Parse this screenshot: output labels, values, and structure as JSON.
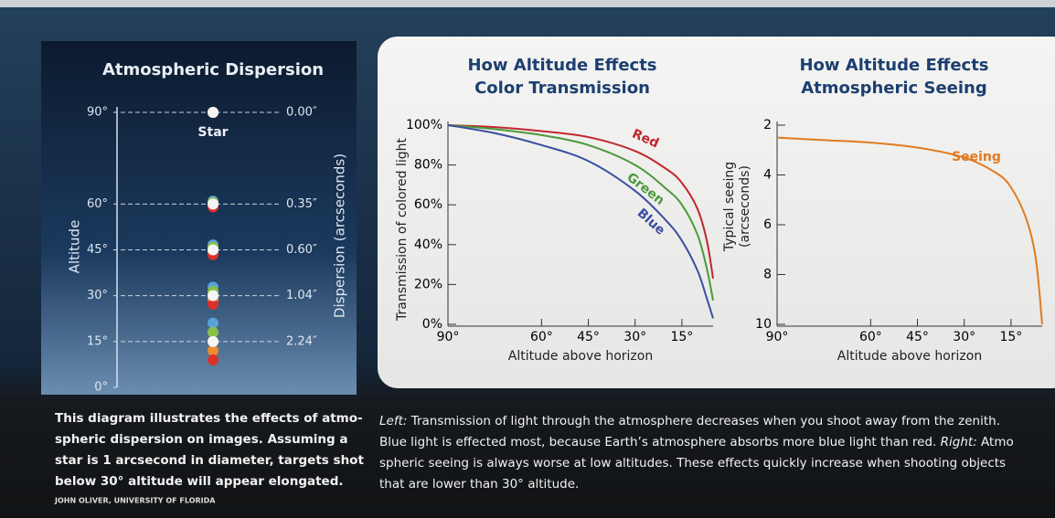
{
  "chart_data": [
    {
      "type": "dispersion",
      "title": "Atmospheric Dispersion",
      "ylabel": "Altitude",
      "y2label": "Dispersion (arcseconds)",
      "annotation": "Star",
      "ylim": [
        0,
        90
      ],
      "yticks": [
        {
          "value": 90,
          "label": "90°"
        },
        {
          "value": 60,
          "label": "60°"
        },
        {
          "value": 45,
          "label": "45°"
        },
        {
          "value": 30,
          "label": "30°"
        },
        {
          "value": 15,
          "label": "15°"
        },
        {
          "value": 0,
          "label": "0°"
        }
      ],
      "x": [
        90,
        60,
        45,
        30,
        15
      ],
      "values": [
        0.0,
        0.35,
        0.6,
        1.04,
        2.24
      ],
      "value_labels": [
        "0.00″",
        "0.35″",
        "0.60″",
        "1.04″",
        "2.24″"
      ],
      "colors": [
        "#5aa0d8",
        "#8cc04a",
        "#f2d03a",
        "#f08a30",
        "#d8322a",
        "#f4f4f4"
      ]
    },
    {
      "type": "line",
      "title": [
        "How Altitude Effects",
        "Color Transmission"
      ],
      "xlabel": "Altitude above horizon",
      "ylabel": "Transmission of colored light",
      "xlim": [
        90,
        5
      ],
      "ylim": [
        0,
        100
      ],
      "xticks": [
        {
          "value": 90,
          "label": "90°"
        },
        {
          "value": 60,
          "label": "60°"
        },
        {
          "value": 45,
          "label": "45°"
        },
        {
          "value": 30,
          "label": "30°"
        },
        {
          "value": 15,
          "label": "15°"
        }
      ],
      "yticks": [
        {
          "value": 0,
          "label": "0%"
        },
        {
          "value": 20,
          "label": "20%"
        },
        {
          "value": 40,
          "label": "40%"
        },
        {
          "value": 60,
          "label": "60%"
        },
        {
          "value": 80,
          "label": "80%"
        },
        {
          "value": 100,
          "label": "100%"
        }
      ],
      "x": [
        90,
        75,
        60,
        45,
        30,
        20,
        15,
        10,
        7,
        5
      ],
      "series": [
        {
          "name": "Red",
          "color": "#c0272d",
          "values": [
            100,
            99,
            97,
            94,
            87,
            78,
            71,
            58,
            42,
            23
          ]
        },
        {
          "name": "Green",
          "color": "#4a9a3a",
          "values": [
            100,
            98,
            95,
            90,
            80,
            68,
            60,
            45,
            28,
            12
          ]
        },
        {
          "name": "Blue",
          "color": "#3a4fa0",
          "values": [
            100,
            96,
            90,
            82,
            67,
            52,
            42,
            27,
            13,
            3
          ]
        }
      ]
    },
    {
      "type": "line",
      "title": [
        "How Altitude Effects",
        "Atmospheric Seeing"
      ],
      "xlabel": "Altitude above horizon",
      "ylabel": [
        "Typical seeing",
        "(arcseconds)"
      ],
      "xlim": [
        90,
        5
      ],
      "ylim": [
        10,
        2
      ],
      "xticks": [
        {
          "value": 90,
          "label": "90°"
        },
        {
          "value": 60,
          "label": "60°"
        },
        {
          "value": 45,
          "label": "45°"
        },
        {
          "value": 30,
          "label": "30°"
        },
        {
          "value": 15,
          "label": "15°"
        }
      ],
      "yticks": [
        2,
        4,
        6,
        8,
        10
      ],
      "x": [
        90,
        75,
        60,
        45,
        30,
        20,
        15,
        10,
        7,
        5
      ],
      "series": [
        {
          "name": "Seeing",
          "color": "#e07b22",
          "values": [
            2.5,
            2.6,
            2.7,
            2.9,
            3.3,
            3.9,
            4.5,
            5.8,
            7.4,
            10
          ]
        }
      ]
    }
  ],
  "caption_left": [
    "This diagram illustrates the effects of atmo-",
    "spheric dispersion on images. Assuming a",
    "star is 1 arcsecond in diameter, targets shot",
    "below 30° altitude will appear elongated."
  ],
  "credit": "JOHN OLIVER, UNIVERSITY OF FLORIDA",
  "caption_right": [
    [
      "Left:",
      " Transmission of light through the atmosphere decreases when you shoot away from the zenith."
    ],
    [
      "Blue light is effected most, because Earth’s atmosphere absorbs more blue light than red. ",
      "Right:",
      " Atmo"
    ],
    [
      "spheric seeing is always worse at low altitudes. These effects quickly increase when shooting objects"
    ],
    [
      "that are lower than 30° altitude."
    ]
  ]
}
